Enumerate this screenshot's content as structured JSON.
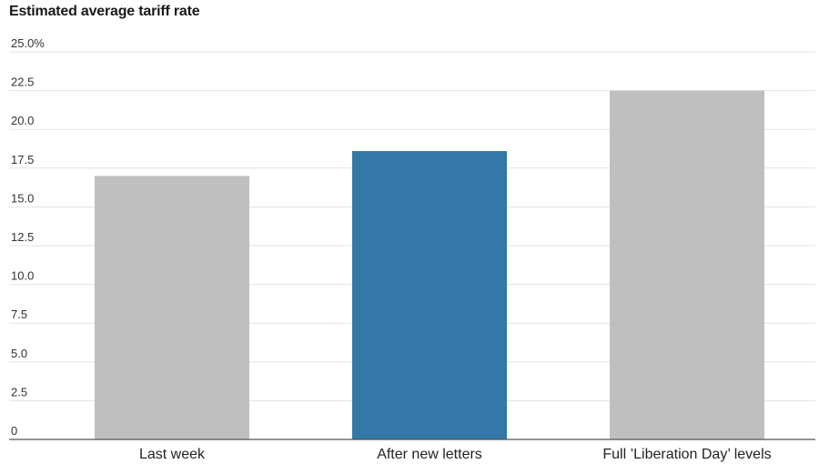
{
  "chart_data": {
    "type": "bar",
    "title": "Estimated average tariff rate",
    "categories": [
      "Last week",
      "After new letters",
      "Full ’Liberation Day’ levels"
    ],
    "values": [
      17.0,
      18.6,
      22.5
    ],
    "ylim": [
      0,
      25
    ],
    "yticks": [
      0,
      2.5,
      5.0,
      7.5,
      10.0,
      12.5,
      15.0,
      17.5,
      20.0,
      22.5,
      25.0
    ],
    "ytick_labels": [
      "0",
      "2.5",
      "5.0",
      "7.5",
      "10.0",
      "12.5",
      "15.0",
      "17.5",
      "20.0",
      "22.5",
      "25.0%"
    ],
    "colors": [
      "#bfbfbf",
      "#3478a8",
      "#bfbfbf"
    ],
    "grid": true,
    "xlabel": "",
    "ylabel": ""
  }
}
